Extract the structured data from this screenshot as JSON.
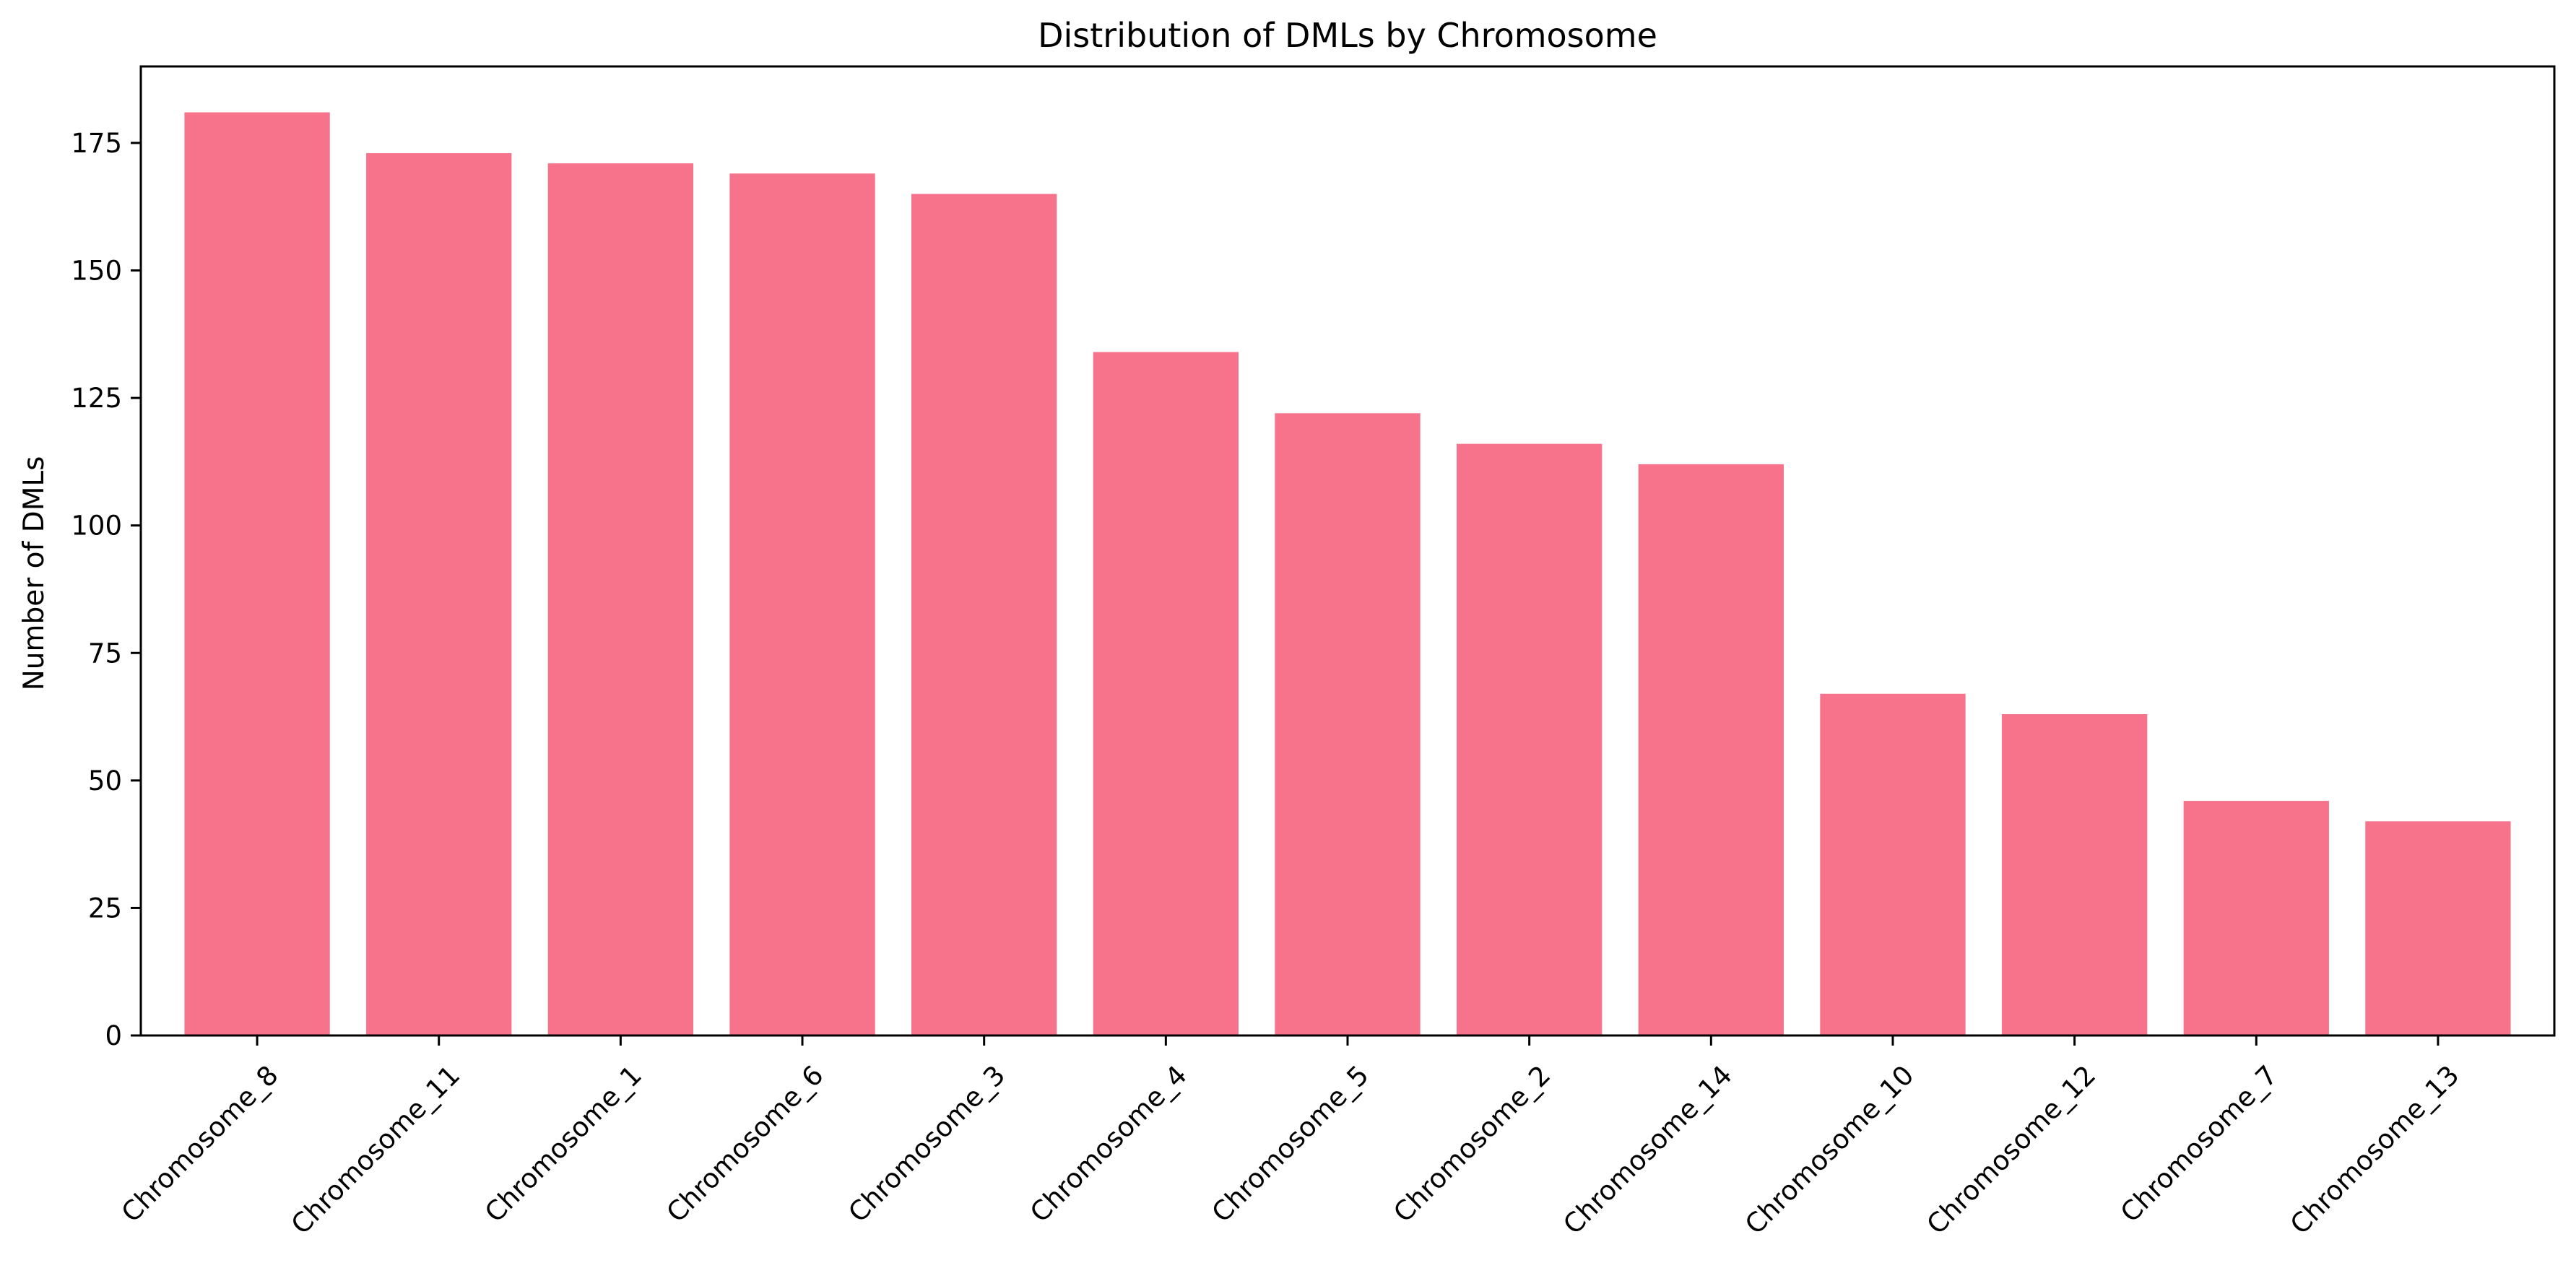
{
  "chart_data": {
    "type": "bar",
    "title": "Distribution of DMLs by Chromosome",
    "xlabel": "",
    "ylabel": "Number of DMLs",
    "categories": [
      "Chromosome_8",
      "Chromosome_11",
      "Chromosome_1",
      "Chromosome_6",
      "Chromosome_3",
      "Chromosome_4",
      "Chromosome_5",
      "Chromosome_2",
      "Chromosome_14",
      "Chromosome_10",
      "Chromosome_12",
      "Chromosome_7",
      "Chromosome_13"
    ],
    "values": [
      181,
      173,
      171,
      169,
      165,
      134,
      122,
      116,
      112,
      67,
      63,
      46,
      42
    ],
    "ylim": [
      0,
      190
    ],
    "yticks": [
      0,
      25,
      50,
      75,
      100,
      125,
      150,
      175
    ],
    "grid": false,
    "bar_color": "#f7738b"
  }
}
